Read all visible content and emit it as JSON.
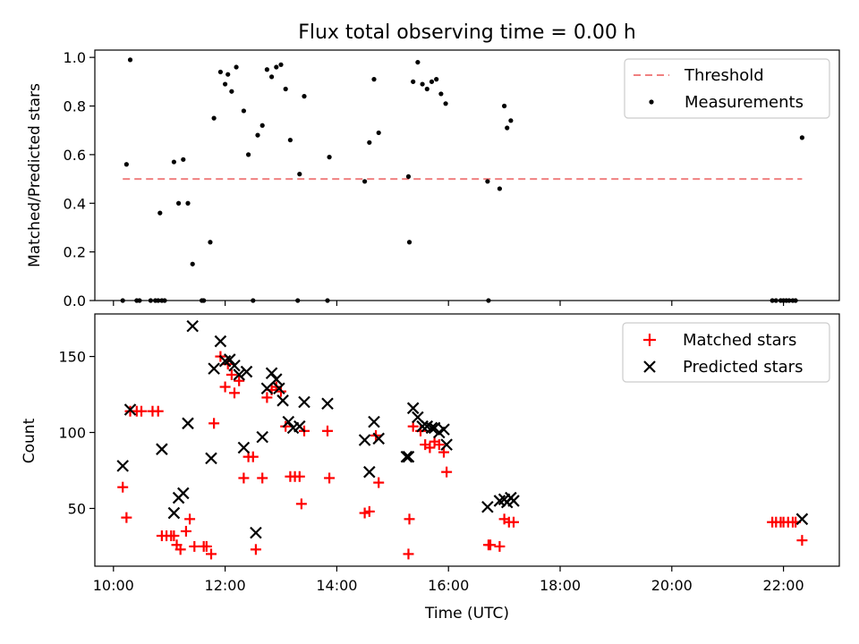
{
  "title": "Flux total observing time = 0.00 h",
  "chart_data": [
    {
      "type": "scatter",
      "ylabel": "Matched/Predicted stars",
      "ylim": [
        0,
        1.03
      ],
      "yticks": [
        "0.0",
        "0.2",
        "0.4",
        "0.6",
        "0.8",
        "1.0"
      ],
      "ytick_values": [
        0,
        0.2,
        0.4,
        0.6,
        0.8,
        1.0
      ],
      "threshold": {
        "name": "Threshold",
        "value": 0.5,
        "x_start": "10:10",
        "x_end": "22:20",
        "color": "#f08080"
      },
      "series": [
        {
          "name": "Measurements",
          "color": "#000000",
          "marker": "dot",
          "points": [
            [
              "10:10",
              0
            ],
            [
              "10:14",
              0.56
            ],
            [
              "10:18",
              0.99
            ],
            [
              "10:25",
              0
            ],
            [
              "10:28",
              0
            ],
            [
              "10:40",
              0
            ],
            [
              "10:45",
              0
            ],
            [
              "10:48",
              0
            ],
            [
              "10:52",
              0
            ],
            [
              "10:55",
              0
            ],
            [
              "10:50",
              0.36
            ],
            [
              "11:05",
              0.57
            ],
            [
              "11:10",
              0.4
            ],
            [
              "11:15",
              0.58
            ],
            [
              "11:20",
              0.4
            ],
            [
              "11:25",
              0.15
            ],
            [
              "11:35",
              0
            ],
            [
              "11:37",
              0
            ],
            [
              "11:44",
              0.24
            ],
            [
              "11:48",
              0.75
            ],
            [
              "11:55",
              0.94
            ],
            [
              "12:00",
              0.89
            ],
            [
              "12:03",
              0.93
            ],
            [
              "12:07",
              0.86
            ],
            [
              "12:12",
              0.96
            ],
            [
              "12:20",
              0.78
            ],
            [
              "12:25",
              0.6
            ],
            [
              "12:30",
              0
            ],
            [
              "12:35",
              0.68
            ],
            [
              "12:40",
              0.72
            ],
            [
              "12:45",
              0.95
            ],
            [
              "12:50",
              0.92
            ],
            [
              "12:55",
              0.96
            ],
            [
              "13:00",
              0.97
            ],
            [
              "13:05",
              0.87
            ],
            [
              "13:10",
              0.66
            ],
            [
              "13:18",
              0
            ],
            [
              "13:20",
              0.52
            ],
            [
              "13:25",
              0.84
            ],
            [
              "13:50",
              0
            ],
            [
              "13:52",
              0.59
            ],
            [
              "14:30",
              0.49
            ],
            [
              "14:35",
              0.65
            ],
            [
              "14:40",
              0.91
            ],
            [
              "14:45",
              0.69
            ],
            [
              "15:17",
              0.51
            ],
            [
              "15:18",
              0.24
            ],
            [
              "15:22",
              0.9
            ],
            [
              "15:27",
              0.98
            ],
            [
              "15:32",
              0.89
            ],
            [
              "15:37",
              0.87
            ],
            [
              "15:42",
              0.9
            ],
            [
              "15:47",
              0.91
            ],
            [
              "15:52",
              0.85
            ],
            [
              "15:57",
              0.81
            ],
            [
              "16:43",
              0
            ],
            [
              "16:42",
              0.49
            ],
            [
              "16:55",
              0.46
            ],
            [
              "17:00",
              0.8
            ],
            [
              "17:03",
              0.71
            ],
            [
              "17:07",
              0.74
            ],
            [
              "21:48",
              0
            ],
            [
              "21:52",
              0
            ],
            [
              "21:57",
              0
            ],
            [
              "22:00",
              0
            ],
            [
              "22:03",
              0
            ],
            [
              "22:06",
              0
            ],
            [
              "22:10",
              0
            ],
            [
              "22:13",
              0
            ],
            [
              "22:20",
              0.67
            ]
          ]
        }
      ],
      "legend": {
        "position": "top-right",
        "entries": [
          "Threshold",
          "Measurements"
        ]
      }
    },
    {
      "type": "scatter",
      "xlabel": "Time (UTC)",
      "ylabel": "Count",
      "xlim": [
        "09:40",
        "23:00"
      ],
      "ylim": [
        12,
        178
      ],
      "xticks": [
        "10:00",
        "12:00",
        "14:00",
        "16:00",
        "18:00",
        "20:00",
        "22:00"
      ],
      "yticks": [
        "50",
        "100",
        "150"
      ],
      "ytick_values": [
        50,
        100,
        150
      ],
      "series": [
        {
          "name": "Matched stars",
          "color": "#ff0000",
          "marker": "plus",
          "points": [
            [
              "10:10",
              64
            ],
            [
              "10:14",
              44
            ],
            [
              "10:18",
              114
            ],
            [
              "10:25",
              114
            ],
            [
              "10:30",
              114
            ],
            [
              "10:42",
              114
            ],
            [
              "10:48",
              114
            ],
            [
              "10:52",
              32
            ],
            [
              "10:57",
              32
            ],
            [
              "11:02",
              32
            ],
            [
              "11:05",
              32
            ],
            [
              "11:08",
              26
            ],
            [
              "11:12",
              23
            ],
            [
              "11:18",
              35
            ],
            [
              "11:22",
              43
            ],
            [
              "11:27",
              25
            ],
            [
              "11:37",
              25
            ],
            [
              "11:40",
              25
            ],
            [
              "11:45",
              20
            ],
            [
              "11:48",
              106
            ],
            [
              "11:55",
              150
            ],
            [
              "12:00",
              130
            ],
            [
              "12:03",
              145
            ],
            [
              "12:07",
              138
            ],
            [
              "12:10",
              126
            ],
            [
              "12:15",
              134
            ],
            [
              "12:20",
              70
            ],
            [
              "12:25",
              84
            ],
            [
              "12:30",
              84
            ],
            [
              "12:33",
              23
            ],
            [
              "12:40",
              70
            ],
            [
              "12:45",
              123
            ],
            [
              "12:50",
              128
            ],
            [
              "12:55",
              130
            ],
            [
              "13:00",
              127
            ],
            [
              "13:05",
              104
            ],
            [
              "13:10",
              71
            ],
            [
              "13:15",
              71
            ],
            [
              "13:20",
              71
            ],
            [
              "13:22",
              53
            ],
            [
              "13:25",
              101
            ],
            [
              "13:50",
              101
            ],
            [
              "13:52",
              70
            ],
            [
              "14:30",
              47
            ],
            [
              "14:35",
              48
            ],
            [
              "14:42",
              98
            ],
            [
              "14:45",
              67
            ],
            [
              "15:17",
              20
            ],
            [
              "15:18",
              43
            ],
            [
              "15:22",
              104
            ],
            [
              "15:30",
              101
            ],
            [
              "15:35",
              92
            ],
            [
              "15:40",
              90
            ],
            [
              "15:45",
              94
            ],
            [
              "15:50",
              92
            ],
            [
              "15:55",
              87
            ],
            [
              "15:58",
              74
            ],
            [
              "16:43",
              26
            ],
            [
              "16:45",
              26
            ],
            [
              "16:55",
              25
            ],
            [
              "17:00",
              43
            ],
            [
              "17:05",
              41
            ],
            [
              "17:10",
              41
            ],
            [
              "21:48",
              41
            ],
            [
              "21:52",
              41
            ],
            [
              "21:57",
              41
            ],
            [
              "22:00",
              41
            ],
            [
              "22:05",
              41
            ],
            [
              "22:10",
              41
            ],
            [
              "22:13",
              41
            ],
            [
              "22:20",
              29
            ]
          ]
        },
        {
          "name": "Predicted stars",
          "color": "#000000",
          "marker": "x",
          "points": [
            [
              "10:10",
              78
            ],
            [
              "10:18",
              115
            ],
            [
              "10:52",
              89
            ],
            [
              "11:05",
              47
            ],
            [
              "11:10",
              57
            ],
            [
              "11:15",
              60
            ],
            [
              "11:20",
              106
            ],
            [
              "11:25",
              170
            ],
            [
              "11:45",
              83
            ],
            [
              "11:48",
              142
            ],
            [
              "11:55",
              160
            ],
            [
              "12:00",
              147
            ],
            [
              "12:05",
              148
            ],
            [
              "12:10",
              144
            ],
            [
              "12:15",
              138
            ],
            [
              "12:20",
              90
            ],
            [
              "12:23",
              140
            ],
            [
              "12:33",
              34
            ],
            [
              "12:40",
              97
            ],
            [
              "12:45",
              129
            ],
            [
              "12:50",
              139
            ],
            [
              "12:55",
              135
            ],
            [
              "12:58",
              129
            ],
            [
              "13:02",
              121
            ],
            [
              "13:08",
              107
            ],
            [
              "13:13",
              103
            ],
            [
              "13:20",
              104
            ],
            [
              "13:25",
              120
            ],
            [
              "13:50",
              119
            ],
            [
              "14:30",
              95
            ],
            [
              "14:35",
              74
            ],
            [
              "14:40",
              107
            ],
            [
              "14:45",
              96
            ],
            [
              "15:15",
              84
            ],
            [
              "15:17",
              84
            ],
            [
              "15:22",
              116
            ],
            [
              "15:27",
              110
            ],
            [
              "15:32",
              104
            ],
            [
              "15:37",
              104
            ],
            [
              "15:42",
              103
            ],
            [
              "15:45",
              103
            ],
            [
              "15:50",
              100
            ],
            [
              "15:55",
              102
            ],
            [
              "15:58",
              92
            ],
            [
              "16:42",
              51
            ],
            [
              "16:55",
              55
            ],
            [
              "17:00",
              56
            ],
            [
              "17:03",
              54
            ],
            [
              "17:07",
              57
            ],
            [
              "17:10",
              55
            ],
            [
              "22:20",
              43
            ]
          ]
        }
      ],
      "legend": {
        "position": "top-right",
        "entries": [
          "Matched stars",
          "Predicted stars"
        ]
      }
    }
  ]
}
